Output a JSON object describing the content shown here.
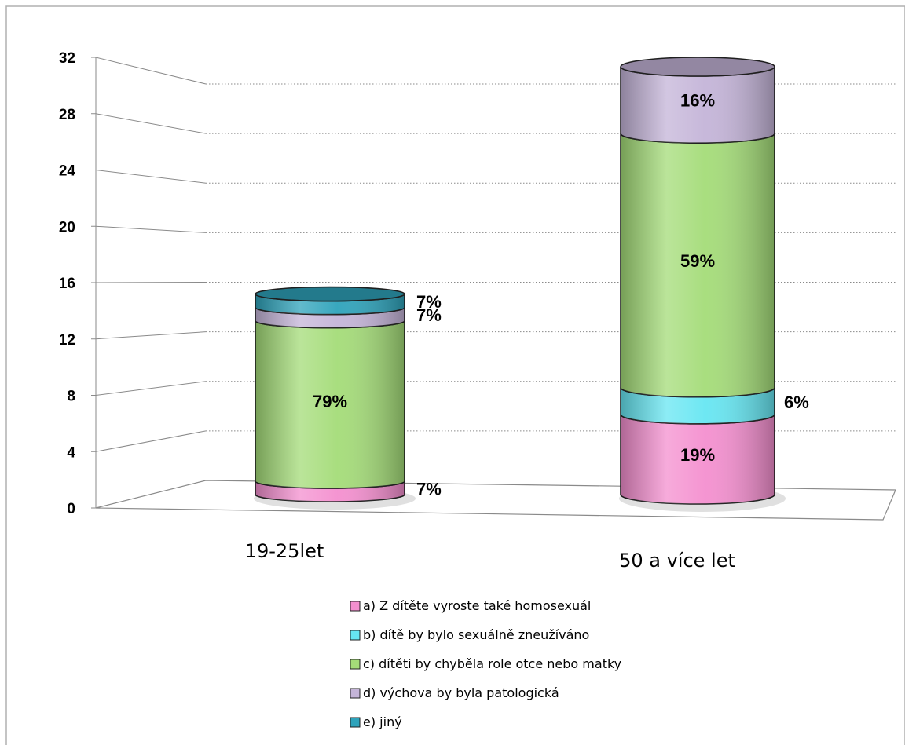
{
  "chart_data": {
    "type": "bar",
    "stacked": true,
    "three_d": true,
    "categories": [
      "19-25let",
      "50 a více let"
    ],
    "ylim": [
      0,
      32
    ],
    "yticks": [
      "0",
      "4",
      "8",
      "12",
      "16",
      "20",
      "24",
      "28",
      "32"
    ],
    "ytick_values": [
      0,
      4,
      8,
      12,
      16,
      20,
      24,
      28,
      32
    ],
    "grid": "dotted horizontal",
    "legend_position": "bottom",
    "series": [
      {
        "name": "a) Z dítěte vyroste také homosexuál",
        "values": [
          1,
          6
        ],
        "labels": [
          "7%",
          "19%"
        ],
        "color": "#f48fcf"
      },
      {
        "name": "b) dítě by bylo sexuálně  zneužíváno",
        "values": [
          0,
          2
        ],
        "labels": [
          "",
          "6%"
        ],
        "color": "#66e6f2"
      },
      {
        "name": "c) dítěti by chyběla role otce nebo matky",
        "values": [
          12,
          19
        ],
        "labels": [
          "79%",
          "59%"
        ],
        "color": "#a4dc78"
      },
      {
        "name": "d) výchova by byla patologická",
        "values": [
          1,
          5
        ],
        "labels": [
          "7%",
          "16%"
        ],
        "color": "#c4b4d8"
      },
      {
        "name": "e) jiný",
        "values": [
          1,
          0
        ],
        "labels": [
          "7%",
          ""
        ],
        "color": "#2ea3bb"
      }
    ]
  }
}
